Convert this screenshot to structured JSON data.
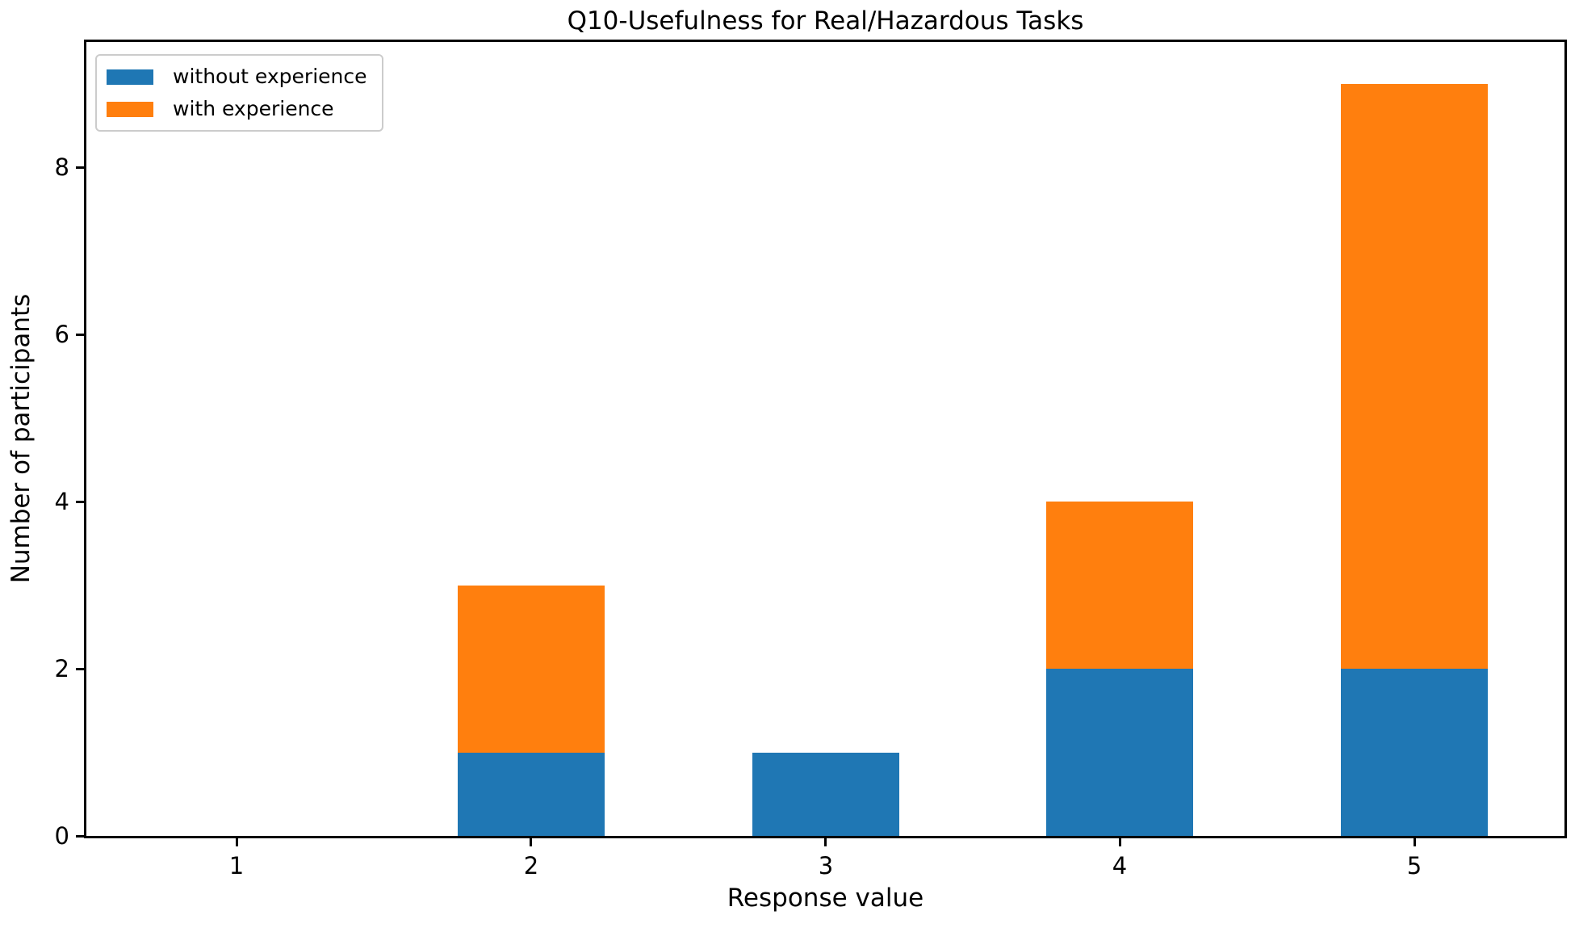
{
  "figure": {
    "background_color": "#ffffff",
    "text_color": "#000000",
    "spine_color": "#000000",
    "legend_border_color": "#cccccc"
  },
  "chart_data": {
    "type": "bar",
    "stacked": true,
    "title": "Q10-Usefulness for Real/Hazardous Tasks",
    "xlabel": "Response value",
    "ylabel": "Number of participants",
    "categories": [
      "1",
      "2",
      "3",
      "4",
      "5"
    ],
    "series": [
      {
        "name": "without experience",
        "color": "#1f77b4",
        "values": [
          0,
          1,
          1,
          2,
          2
        ]
      },
      {
        "name": "with experience",
        "color": "#ff7f0e",
        "values": [
          0,
          2,
          0,
          2,
          7
        ]
      }
    ],
    "totals": [
      0,
      3,
      1,
      4,
      9
    ],
    "ylim": [
      0,
      9.5
    ],
    "yticks": [
      0,
      2,
      4,
      6,
      8
    ],
    "grid": false,
    "legend_position": "upper left",
    "bar_width_fraction": 0.5
  }
}
